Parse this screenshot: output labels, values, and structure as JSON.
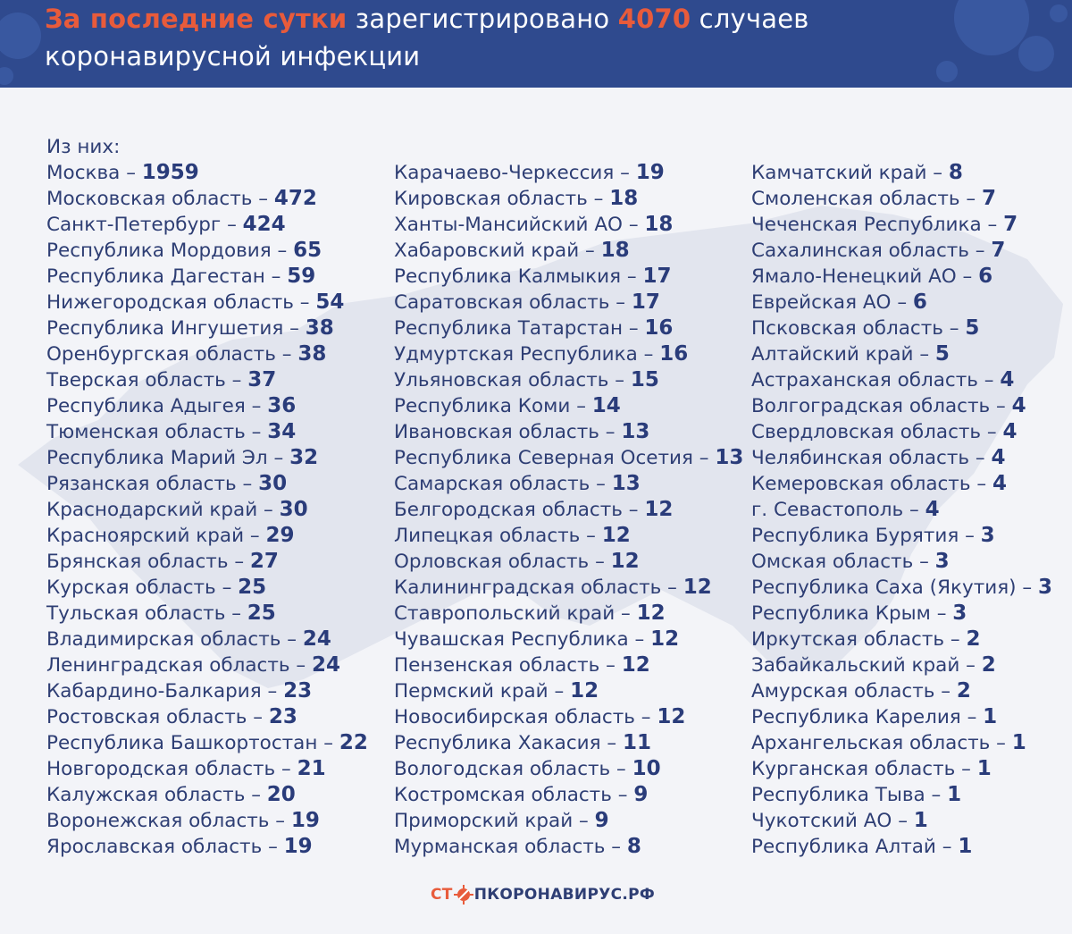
{
  "header": {
    "title_accent": "За последние сутки",
    "title_part2": " зарегистрировано ",
    "title_number": "4070",
    "title_part3": " случаев",
    "title_line2": "коронавирусной инфекции"
  },
  "intro": "Из них:",
  "columns": [
    [
      {
        "region": "Москва",
        "count": "1959"
      },
      {
        "region": "Московская область",
        "count": "472"
      },
      {
        "region": "Санкт-Петербург",
        "count": "424"
      },
      {
        "region": "Республика Мордовия",
        "count": "65"
      },
      {
        "region": "Республика Дагестан",
        "count": "59"
      },
      {
        "region": "Нижегородская область",
        "count": "54"
      },
      {
        "region": "Республика Ингушетия",
        "count": "38"
      },
      {
        "region": "Оренбургская область",
        "count": "38"
      },
      {
        "region": "Тверская область",
        "count": "37"
      },
      {
        "region": "Республика Адыгея",
        "count": "36"
      },
      {
        "region": "Тюменская область",
        "count": "34"
      },
      {
        "region": "Республика Марий Эл",
        "count": "32"
      },
      {
        "region": "Рязанская область",
        "count": "30"
      },
      {
        "region": "Краснодарский край",
        "count": "30"
      },
      {
        "region": "Красноярский край",
        "count": "29"
      },
      {
        "region": "Брянская область",
        "count": "27"
      },
      {
        "region": "Курская область",
        "count": "25"
      },
      {
        "region": "Тульская область",
        "count": "25"
      },
      {
        "region": "Владимирская область",
        "count": "24"
      },
      {
        "region": "Ленинградская область",
        "count": "24"
      },
      {
        "region": "Кабардино-Балкария",
        "count": "23"
      },
      {
        "region": "Ростовская область",
        "count": "23"
      },
      {
        "region": "Республика Башкортостан",
        "count": "22"
      },
      {
        "region": "Новгородская область",
        "count": "21"
      },
      {
        "region": "Калужская область",
        "count": "20"
      },
      {
        "region": "Воронежская область",
        "count": "19"
      },
      {
        "region": "Ярославская область",
        "count": "19"
      }
    ],
    [
      {
        "region": "Карачаево-Черкессия",
        "count": "19"
      },
      {
        "region": "Кировская область",
        "count": "18"
      },
      {
        "region": "Ханты-Мансийский АО",
        "count": "18"
      },
      {
        "region": "Хабаровский край",
        "count": "18"
      },
      {
        "region": "Республика Калмыкия",
        "count": "17"
      },
      {
        "region": "Саратовская область",
        "count": "17"
      },
      {
        "region": "Республика Татарстан",
        "count": "16"
      },
      {
        "region": "Удмуртская Республика",
        "count": "16"
      },
      {
        "region": "Ульяновская область",
        "count": "15"
      },
      {
        "region": "Республика Коми",
        "count": "14"
      },
      {
        "region": "Ивановская область",
        "count": "13"
      },
      {
        "region": "Республика Северная Осетия",
        "count": "13"
      },
      {
        "region": "Самарская область",
        "count": "13"
      },
      {
        "region": "Белгородская область",
        "count": "12"
      },
      {
        "region": "Липецкая область",
        "count": "12"
      },
      {
        "region": "Орловская область",
        "count": "12"
      },
      {
        "region": "Калининградская область",
        "count": "12"
      },
      {
        "region": "Ставропольский край",
        "count": "12"
      },
      {
        "region": "Чувашская Республика",
        "count": "12"
      },
      {
        "region": "Пензенская область",
        "count": "12"
      },
      {
        "region": "Пермский край",
        "count": "12"
      },
      {
        "region": "Новосибирская область",
        "count": "12"
      },
      {
        "region": "Республика Хакасия",
        "count": "11"
      },
      {
        "region": "Вологодская область",
        "count": "10"
      },
      {
        "region": "Костромская область",
        "count": "9"
      },
      {
        "region": "Приморский край",
        "count": "9"
      },
      {
        "region": "Мурманская область",
        "count": "8"
      }
    ],
    [
      {
        "region": "Камчатский край",
        "count": "8"
      },
      {
        "region": "Смоленская область",
        "count": "7"
      },
      {
        "region": "Чеченская Республика",
        "count": "7"
      },
      {
        "region": "Сахалинская область",
        "count": "7"
      },
      {
        "region": "Ямало-Ненецкий АО",
        "count": "6"
      },
      {
        "region": "Еврейская АО",
        "count": "6"
      },
      {
        "region": "Псковская область",
        "count": "5"
      },
      {
        "region": "Алтайский край",
        "count": "5"
      },
      {
        "region": "Астраханская область",
        "count": "4"
      },
      {
        "region": "Волгоградская область",
        "count": "4"
      },
      {
        "region": "Свердловская область",
        "count": "4"
      },
      {
        "region": "Челябинская область",
        "count": "4"
      },
      {
        "region": "Кемеровская область",
        "count": "4"
      },
      {
        "region": "г. Севастополь",
        "count": "4"
      },
      {
        "region": "Республика Бурятия",
        "count": "3"
      },
      {
        "region": "Омская область",
        "count": "3"
      },
      {
        "region": "Республика Саха (Якутия)",
        "count": "3"
      },
      {
        "region": "Республика Крым",
        "count": "3"
      },
      {
        "region": "Иркутская область",
        "count": "2"
      },
      {
        "region": "Забайкальский край",
        "count": "2"
      },
      {
        "region": "Амурская область",
        "count": "2"
      },
      {
        "region": "Республика Карелия",
        "count": "1"
      },
      {
        "region": "Архангельская область",
        "count": "1"
      },
      {
        "region": "Курганская область",
        "count": "1"
      },
      {
        "region": "Республика Тыва",
        "count": "1"
      },
      {
        "region": "Чукотский АО",
        "count": "1"
      },
      {
        "region": "Республика Алтай",
        "count": "1"
      }
    ]
  ],
  "separator": " – ",
  "footer": {
    "logo_part1": "СТ",
    "logo_part2": "ПКОРОНАВИРУС.РФ"
  },
  "colors": {
    "header_bg": "#2f4a8e",
    "accent": "#e85b3b",
    "text": "#2e3e74",
    "background": "#f3f4f8",
    "map": "#e2e5ee"
  }
}
